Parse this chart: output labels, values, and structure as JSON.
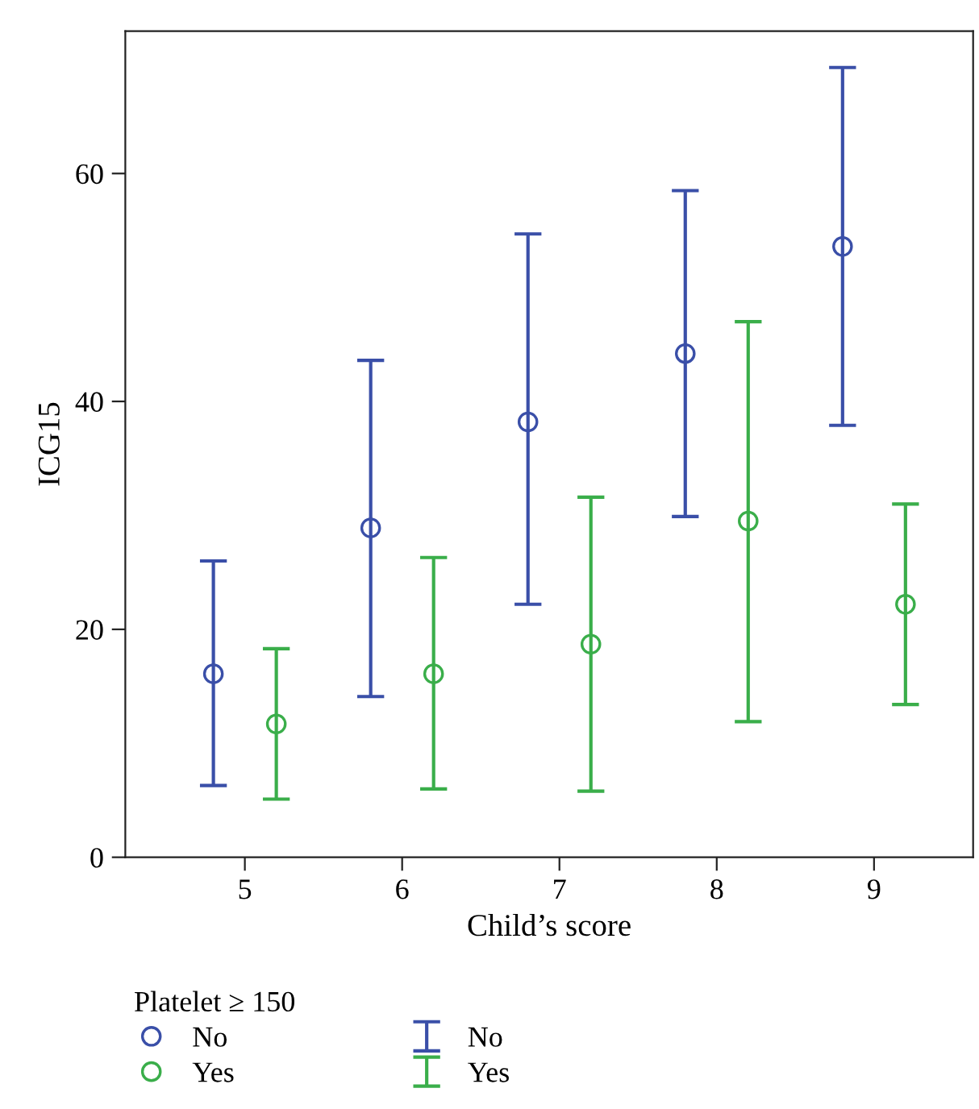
{
  "chart_data": {
    "type": "scatter",
    "xlabel": "Child’s score",
    "ylabel": "ICG15",
    "legend_title": "Platelet ≥ 150",
    "legend": "bottom",
    "marker": "circle",
    "grid": false,
    "xlim": [
      4.24,
      9.63
    ],
    "xticks": [
      5,
      6,
      7,
      8,
      9
    ],
    "ylim": [
      0,
      72.5
    ],
    "yticks": [
      0,
      20,
      40,
      60
    ],
    "series": [
      {
        "name": "No",
        "color": "#3a4fa8",
        "x": [
          4.8,
          5.8,
          6.8,
          7.8,
          8.8
        ],
        "values": [
          16.1,
          28.9,
          38.2,
          44.2,
          53.6
        ],
        "errors": [
          [
            6.3,
            26.0
          ],
          [
            14.1,
            43.6
          ],
          [
            22.2,
            54.7
          ],
          [
            29.9,
            58.5
          ],
          [
            37.9,
            69.3
          ]
        ]
      },
      {
        "name": "Yes",
        "color": "#3aae4a",
        "x": [
          5.2,
          6.2,
          7.2,
          8.2,
          9.2
        ],
        "values": [
          11.7,
          16.1,
          18.7,
          29.5,
          22.2
        ],
        "errors": [
          [
            5.1,
            18.3
          ],
          [
            6.0,
            26.3
          ],
          [
            5.8,
            31.6
          ],
          [
            11.9,
            47.0
          ],
          [
            13.4,
            31.0
          ]
        ]
      }
    ]
  }
}
